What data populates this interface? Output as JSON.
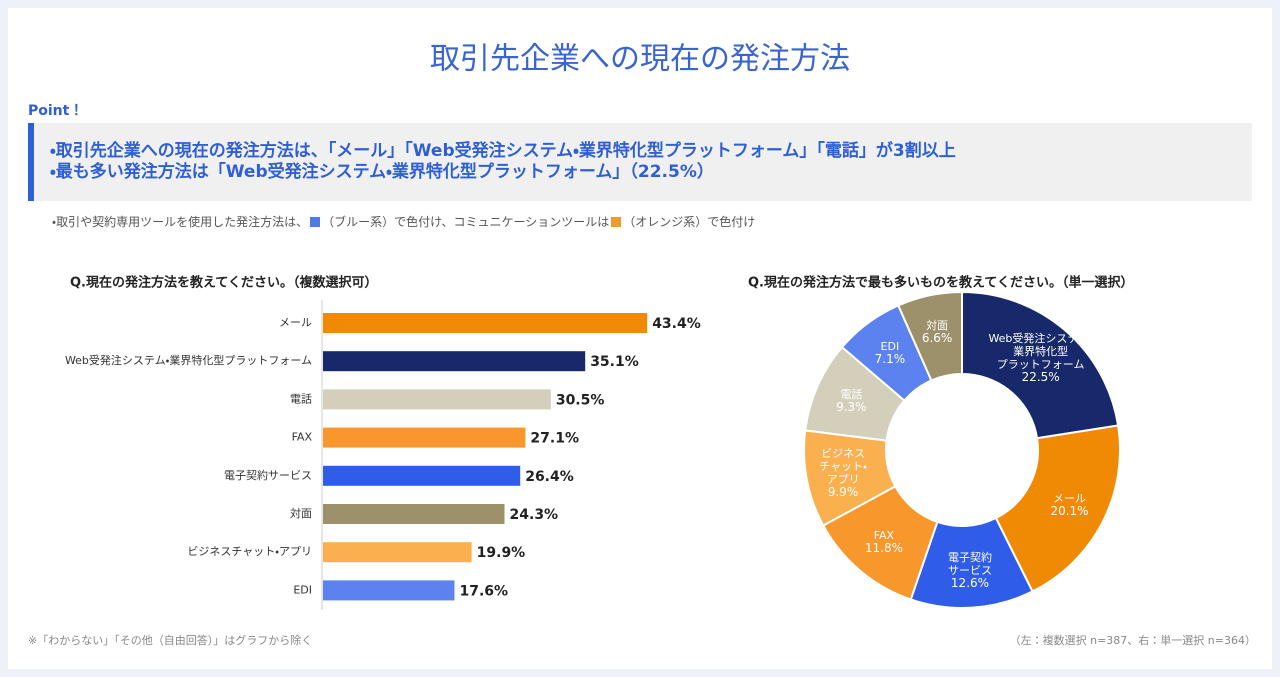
{
  "title": "取引先企業への現在の発注方法",
  "point": {
    "label": "Point！",
    "items": [
      "・取引先企業への現在の発注方法は、「メール」「Web受発注システム・業界特化型プラットフォーム」「電話」が3割以上",
      "・最も多い発注方法は「Web受発注システム・業界特化型プラットフォーム」（22.5%）"
    ]
  },
  "note": {
    "parts": [
      "・取引や契約専用ツールを使用した発注方法は、",
      "（ブルー系）で色付け、コミュニケーションツールは",
      "（オレンジ系）で色付け"
    ],
    "colors": [
      "#4f7be8",
      "#f29a2e"
    ]
  },
  "footnote": "※「わからない」「その他（自由回答）」はグラフから除く",
  "sample_note": "（左：複数選択 n=387、右：単一選択 n=364）",
  "chart_data": [
    {
      "type": "bar",
      "orientation": "horizontal",
      "title": "Q.現在の発注方法を教えてください。（複数選択可）",
      "categories": [
        "メール",
        "Web受発注システム・業界特化型プラットフォーム",
        "電話",
        "FAX",
        "電子契約サービス",
        "対面",
        "ビジネスチャット・アプリ",
        "EDI"
      ],
      "values": [
        43.4,
        35.1,
        30.5,
        27.1,
        26.4,
        24.3,
        19.9,
        17.6
      ],
      "value_labels": [
        "43.4%",
        "35.1%",
        "30.5%",
        "27.1%",
        "26.4%",
        "24.3%",
        "19.9%",
        "17.6%"
      ],
      "colors": [
        "#f08a05",
        "#17296b",
        "#d3cfbb",
        "#f7972c",
        "#2f5de9",
        "#9d916c",
        "#fbb04f",
        "#5b82ef"
      ]
    },
    {
      "type": "pie",
      "donut": true,
      "title": "Q.現在の発注方法で最も多いものを教えてください。（単一選択）",
      "categories": [
        "Web受発注システム・\n業界特化型\nプラットフォーム",
        "メール",
        "電子契約\nサービス",
        "FAX",
        "ビジネス\nチャット・\nアプリ",
        "電話",
        "EDI",
        "対面"
      ],
      "values": [
        22.5,
        20.1,
        12.6,
        11.8,
        9.9,
        9.3,
        7.1,
        6.6
      ],
      "value_labels": [
        "22.5%",
        "20.1%",
        "12.6%",
        "11.8%",
        "9.9%",
        "9.3%",
        "7.1%",
        "6.6%"
      ],
      "colors": [
        "#17296b",
        "#f08a05",
        "#2f5de9",
        "#f7972c",
        "#fbb04f",
        "#d3cfbb",
        "#5b82ef",
        "#9d916c"
      ]
    }
  ]
}
